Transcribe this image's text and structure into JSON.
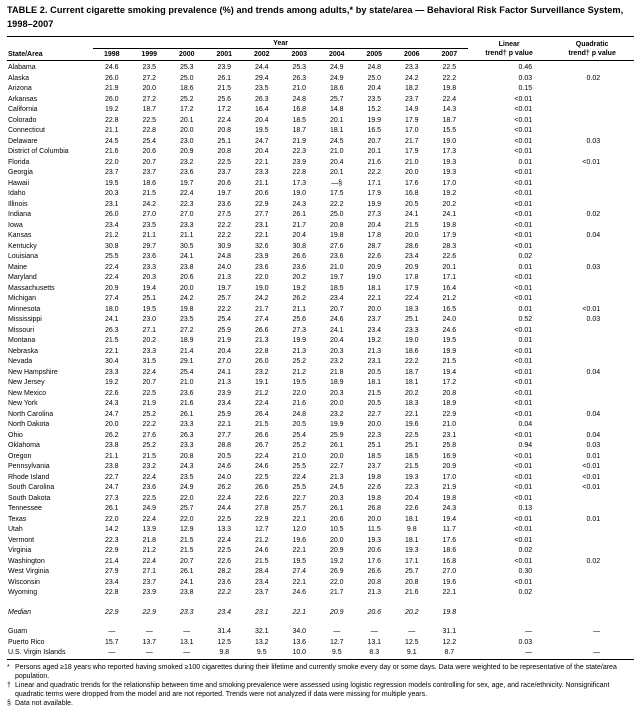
{
  "title": "TABLE 2. Current cigarette smoking prevalence (%) and trends among adults,* by state/area — Behavioral Risk Factor Surveillance System, 1998–2007",
  "table": {
    "year_group_label": "Year",
    "state_col_label": "State/Area",
    "years": [
      "1998",
      "1999",
      "2000",
      "2001",
      "2002",
      "2003",
      "2004",
      "2005",
      "2006",
      "2007"
    ],
    "linear_col": {
      "line1": "Linear",
      "line2": "trend† p value"
    },
    "quadratic_col": {
      "line1": "Quadratic",
      "line2": "trend† p value"
    },
    "rows": [
      {
        "area": "Alabama",
        "group": "states",
        "values": [
          "24.6",
          "23.5",
          "25.3",
          "23.9",
          "24.4",
          "25.3",
          "24.9",
          "24.8",
          "23.3",
          "22.5"
        ],
        "linear": "0.46",
        "quadratic": ""
      },
      {
        "area": "Alaska",
        "group": "states",
        "values": [
          "26.0",
          "27.2",
          "25.0",
          "26.1",
          "29.4",
          "26.3",
          "24.9",
          "25.0",
          "24.2",
          "22.2"
        ],
        "linear": "0.03",
        "quadratic": "0.02"
      },
      {
        "area": "Arizona",
        "group": "states",
        "values": [
          "21.9",
          "20.0",
          "18.6",
          "21.5",
          "23.5",
          "21.0",
          "18.6",
          "20.4",
          "18.2",
          "19.8"
        ],
        "linear": "0.15",
        "quadratic": ""
      },
      {
        "area": "Arkansas",
        "group": "states",
        "values": [
          "26.0",
          "27.2",
          "25.2",
          "25.6",
          "26.3",
          "24.8",
          "25.7",
          "23.5",
          "23.7",
          "22.4"
        ],
        "linear": "<0.01",
        "quadratic": ""
      },
      {
        "area": "California",
        "group": "states",
        "values": [
          "19.2",
          "18.7",
          "17.2",
          "17.2",
          "16.4",
          "16.8",
          "14.8",
          "15.2",
          "14.9",
          "14.3"
        ],
        "linear": "<0.01",
        "quadratic": ""
      },
      {
        "area": "Colorado",
        "group": "states",
        "values": [
          "22.8",
          "22.5",
          "20.1",
          "22.4",
          "20.4",
          "18.5",
          "20.1",
          "19.9",
          "17.9",
          "18.7"
        ],
        "linear": "<0.01",
        "quadratic": ""
      },
      {
        "area": "Connecticut",
        "group": "states",
        "values": [
          "21.1",
          "22.8",
          "20.0",
          "20.8",
          "19.5",
          "18.7",
          "18.1",
          "16.5",
          "17.0",
          "15.5"
        ],
        "linear": "<0.01",
        "quadratic": ""
      },
      {
        "area": "Delaware",
        "group": "states",
        "values": [
          "24.5",
          "25.4",
          "23.0",
          "25.1",
          "24.7",
          "21.9",
          "24.5",
          "20.7",
          "21.7",
          "19.0"
        ],
        "linear": "<0.01",
        "quadratic": "0.03"
      },
      {
        "area": "District of Columbia",
        "group": "states",
        "values": [
          "21.6",
          "20.6",
          "20.9",
          "20.8",
          "20.4",
          "22.3",
          "21.0",
          "20.1",
          "17.9",
          "17.3"
        ],
        "linear": "<0.01",
        "quadratic": ""
      },
      {
        "area": "Florida",
        "group": "states",
        "values": [
          "22.0",
          "20.7",
          "23.2",
          "22.5",
          "22.1",
          "23.9",
          "20.4",
          "21.6",
          "21.0",
          "19.3"
        ],
        "linear": "0.01",
        "quadratic": "<0.01"
      },
      {
        "area": "Georgia",
        "group": "states",
        "values": [
          "23.7",
          "23.7",
          "23.6",
          "23.7",
          "23.3",
          "22.8",
          "20.1",
          "22.2",
          "20.0",
          "19.3"
        ],
        "linear": "<0.01",
        "quadratic": ""
      },
      {
        "area": "Hawaii",
        "group": "states",
        "values": [
          "19.5",
          "18.6",
          "19.7",
          "20.6",
          "21.1",
          "17.3",
          "—§",
          "17.1",
          "17.6",
          "17.0"
        ],
        "linear": "<0.01",
        "quadratic": ""
      },
      {
        "area": "Idaho",
        "group": "states",
        "values": [
          "20.3",
          "21.5",
          "22.4",
          "19.7",
          "20.6",
          "19.0",
          "17.5",
          "17.9",
          "16.8",
          "19.2"
        ],
        "linear": "<0.01",
        "quadratic": ""
      },
      {
        "area": "Illinois",
        "group": "states",
        "values": [
          "23.1",
          "24.2",
          "22.3",
          "23.6",
          "22.9",
          "24.3",
          "22.2",
          "19.9",
          "20.5",
          "20.2"
        ],
        "linear": "<0.01",
        "quadratic": ""
      },
      {
        "area": "Indiana",
        "group": "states",
        "values": [
          "26.0",
          "27.0",
          "27.0",
          "27.5",
          "27.7",
          "26.1",
          "25.0",
          "27.3",
          "24.1",
          "24.1"
        ],
        "linear": "<0.01",
        "quadratic": "0.02"
      },
      {
        "area": "Iowa",
        "group": "states",
        "values": [
          "23.4",
          "23.5",
          "23.3",
          "22.2",
          "23.1",
          "21.7",
          "20.8",
          "20.4",
          "21.5",
          "19.8"
        ],
        "linear": "<0.01",
        "quadratic": ""
      },
      {
        "area": "Kansas",
        "group": "states",
        "values": [
          "21.2",
          "21.1",
          "21.1",
          "22.2",
          "22.1",
          "20.4",
          "19.8",
          "17.8",
          "20.0",
          "17.9"
        ],
        "linear": "<0.01",
        "quadratic": "0.04"
      },
      {
        "area": "Kentucky",
        "group": "states",
        "values": [
          "30.8",
          "29.7",
          "30.5",
          "30.9",
          "32.6",
          "30.8",
          "27.6",
          "28.7",
          "28.6",
          "28.3"
        ],
        "linear": "<0.01",
        "quadratic": ""
      },
      {
        "area": "Louisiana",
        "group": "states",
        "values": [
          "25.5",
          "23.6",
          "24.1",
          "24.8",
          "23.9",
          "26.6",
          "23.6",
          "22.6",
          "23.4",
          "22.6"
        ],
        "linear": "0.02",
        "quadratic": ""
      },
      {
        "area": "Maine",
        "group": "states",
        "values": [
          "22.4",
          "23.3",
          "23.8",
          "24.0",
          "23.6",
          "23.6",
          "21.0",
          "20.9",
          "20.9",
          "20.1"
        ],
        "linear": "0.01",
        "quadratic": "0.03"
      },
      {
        "area": "Maryland",
        "group": "states",
        "values": [
          "22.4",
          "20.3",
          "20.6",
          "21.3",
          "22.0",
          "20.2",
          "19.7",
          "19.0",
          "17.8",
          "17.1"
        ],
        "linear": "<0.01",
        "quadratic": ""
      },
      {
        "area": "Massachusetts",
        "group": "states",
        "values": [
          "20.9",
          "19.4",
          "20.0",
          "19.7",
          "19.0",
          "19.2",
          "18.5",
          "18.1",
          "17.9",
          "16.4"
        ],
        "linear": "<0.01",
        "quadratic": ""
      },
      {
        "area": "Michigan",
        "group": "states",
        "values": [
          "27.4",
          "25.1",
          "24.2",
          "25.7",
          "24.2",
          "26.2",
          "23.4",
          "22.1",
          "22.4",
          "21.2"
        ],
        "linear": "<0.01",
        "quadratic": ""
      },
      {
        "area": "Minnesota",
        "group": "states",
        "values": [
          "18.0",
          "19.5",
          "19.8",
          "22.2",
          "21.7",
          "21.1",
          "20.7",
          "20.0",
          "18.3",
          "16.5"
        ],
        "linear": "0.01",
        "quadratic": "<0.01"
      },
      {
        "area": "Mississippi",
        "group": "states",
        "values": [
          "24.1",
          "23.0",
          "23.5",
          "25.4",
          "27.4",
          "25.6",
          "24.6",
          "23.7",
          "25.1",
          "24.0"
        ],
        "linear": "0.52",
        "quadratic": "0.03"
      },
      {
        "area": "Missouri",
        "group": "states",
        "values": [
          "26.3",
          "27.1",
          "27.2",
          "25.9",
          "26.6",
          "27.3",
          "24.1",
          "23.4",
          "23.3",
          "24.6"
        ],
        "linear": "<0.01",
        "quadratic": ""
      },
      {
        "area": "Montana",
        "group": "states",
        "values": [
          "21.5",
          "20.2",
          "18.9",
          "21.9",
          "21.3",
          "19.9",
          "20.4",
          "19.2",
          "19.0",
          "19.5"
        ],
        "linear": "0.01",
        "quadratic": ""
      },
      {
        "area": "Nebraska",
        "group": "states",
        "values": [
          "22.1",
          "23.3",
          "21.4",
          "20.4",
          "22.8",
          "21.3",
          "20.3",
          "21.3",
          "18.6",
          "19.9"
        ],
        "linear": "<0.01",
        "quadratic": ""
      },
      {
        "area": "Nevada",
        "group": "states",
        "values": [
          "30.4",
          "31.5",
          "29.1",
          "27.0",
          "26.0",
          "25.2",
          "23.2",
          "23.1",
          "22.2",
          "21.5"
        ],
        "linear": "<0.01",
        "quadratic": ""
      },
      {
        "area": "New Hampshire",
        "group": "states",
        "values": [
          "23.3",
          "22.4",
          "25.4",
          "24.1",
          "23.2",
          "21.2",
          "21.8",
          "20.5",
          "18.7",
          "19.4"
        ],
        "linear": "<0.01",
        "quadratic": "0.04"
      },
      {
        "area": "New Jersey",
        "group": "states",
        "values": [
          "19.2",
          "20.7",
          "21.0",
          "21.3",
          "19.1",
          "19.5",
          "18.9",
          "18.1",
          "18.1",
          "17.2"
        ],
        "linear": "<0.01",
        "quadratic": ""
      },
      {
        "area": "New Mexico",
        "group": "states",
        "values": [
          "22.6",
          "22.5",
          "23.6",
          "23.9",
          "21.2",
          "22.0",
          "20.3",
          "21.5",
          "20.2",
          "20.8"
        ],
        "linear": "<0.01",
        "quadratic": ""
      },
      {
        "area": "New York",
        "group": "states",
        "values": [
          "24.3",
          "21.9",
          "21.6",
          "23.4",
          "22.4",
          "21.6",
          "20.0",
          "20.5",
          "18.3",
          "18.9"
        ],
        "linear": "<0.01",
        "quadratic": ""
      },
      {
        "area": "North Carolina",
        "group": "states",
        "values": [
          "24.7",
          "25.2",
          "26.1",
          "25.9",
          "26.4",
          "24.8",
          "23.2",
          "22.7",
          "22.1",
          "22.9"
        ],
        "linear": "<0.01",
        "quadratic": "0.04"
      },
      {
        "area": "North Dakota",
        "group": "states",
        "values": [
          "20.0",
          "22.2",
          "23.3",
          "22.1",
          "21.5",
          "20.5",
          "19.9",
          "20.0",
          "19.6",
          "21.0"
        ],
        "linear": "0.04",
        "quadratic": ""
      },
      {
        "area": "Ohio",
        "group": "states",
        "values": [
          "26.2",
          "27.6",
          "26.3",
          "27.7",
          "26.6",
          "25.4",
          "25.9",
          "22.3",
          "22.5",
          "23.1"
        ],
        "linear": "<0.01",
        "quadratic": "0.04"
      },
      {
        "area": "Oklahoma",
        "group": "states",
        "values": [
          "23.8",
          "25.2",
          "23.3",
          "28.8",
          "26.7",
          "25.2",
          "26.1",
          "25.1",
          "25.1",
          "25.8"
        ],
        "linear": "0.94",
        "quadratic": "0.03"
      },
      {
        "area": "Oregon",
        "group": "states",
        "values": [
          "21.1",
          "21.5",
          "20.8",
          "20.5",
          "22.4",
          "21.0",
          "20.0",
          "18.5",
          "18.5",
          "16.9"
        ],
        "linear": "<0.01",
        "quadratic": "0.01"
      },
      {
        "area": "Pennsylvania",
        "group": "states",
        "values": [
          "23.8",
          "23.2",
          "24.3",
          "24.6",
          "24.6",
          "25.5",
          "22.7",
          "23.7",
          "21.5",
          "20.9"
        ],
        "linear": "<0.01",
        "quadratic": "<0.01"
      },
      {
        "area": "Rhode Island",
        "group": "states",
        "values": [
          "22.7",
          "22.4",
          "23.5",
          "24.0",
          "22.5",
          "22.4",
          "21.3",
          "19.8",
          "19.3",
          "17.0"
        ],
        "linear": "<0.01",
        "quadratic": "<0.01"
      },
      {
        "area": "South Carolina",
        "group": "states",
        "values": [
          "24.7",
          "23.6",
          "24.9",
          "26.2",
          "26.6",
          "25.5",
          "24.5",
          "22.6",
          "22.3",
          "21.9"
        ],
        "linear": "<0.01",
        "quadratic": "<0.01"
      },
      {
        "area": "South Dakota",
        "group": "states",
        "values": [
          "27.3",
          "22.5",
          "22.0",
          "22.4",
          "22.6",
          "22.7",
          "20.3",
          "19.8",
          "20.4",
          "19.8"
        ],
        "linear": "<0.01",
        "quadratic": ""
      },
      {
        "area": "Tennessee",
        "group": "states",
        "values": [
          "26.1",
          "24.9",
          "25.7",
          "24.4",
          "27.8",
          "25.7",
          "26.1",
          "26.8",
          "22.6",
          "24.3"
        ],
        "linear": "0.13",
        "quadratic": ""
      },
      {
        "area": "Texas",
        "group": "states",
        "values": [
          "22.0",
          "22.4",
          "22.0",
          "22.5",
          "22.9",
          "22.1",
          "20.6",
          "20.0",
          "18.1",
          "19.4"
        ],
        "linear": "<0.01",
        "quadratic": "0.01"
      },
      {
        "area": "Utah",
        "group": "states",
        "values": [
          "14.2",
          "13.9",
          "12.9",
          "13.3",
          "12.7",
          "12.0",
          "10.5",
          "11.5",
          "9.8",
          "11.7"
        ],
        "linear": "<0.01",
        "quadratic": ""
      },
      {
        "area": "Vermont",
        "group": "states",
        "values": [
          "22.3",
          "21.8",
          "21.5",
          "22.4",
          "21.2",
          "19.6",
          "20.0",
          "19.3",
          "18.1",
          "17.6"
        ],
        "linear": "<0.01",
        "quadratic": ""
      },
      {
        "area": "Virginia",
        "group": "states",
        "values": [
          "22.9",
          "21.2",
          "21.5",
          "22.5",
          "24.6",
          "22.1",
          "20.9",
          "20.6",
          "19.3",
          "18.6"
        ],
        "linear": "0.02",
        "quadratic": ""
      },
      {
        "area": "Washington",
        "group": "states",
        "values": [
          "21.4",
          "22.4",
          "20.7",
          "22.6",
          "21.5",
          "19.5",
          "19.2",
          "17.6",
          "17.1",
          "16.8"
        ],
        "linear": "<0.01",
        "quadratic": "0.02"
      },
      {
        "area": "West Virginia",
        "group": "states",
        "values": [
          "27.9",
          "27.1",
          "26.1",
          "28.2",
          "28.4",
          "27.4",
          "26.9",
          "26.6",
          "25.7",
          "27.0"
        ],
        "linear": "0.30",
        "quadratic": ""
      },
      {
        "area": "Wisconsin",
        "group": "states",
        "values": [
          "23.4",
          "23.7",
          "24.1",
          "23.6",
          "23.4",
          "22.1",
          "22.0",
          "20.8",
          "20.8",
          "19.6"
        ],
        "linear": "<0.01",
        "quadratic": ""
      },
      {
        "area": "Wyoming",
        "group": "states",
        "values": [
          "22.8",
          "23.9",
          "23.8",
          "22.2",
          "23.7",
          "24.6",
          "21.7",
          "21.3",
          "21.6",
          "22.1"
        ],
        "linear": "0.02",
        "quadratic": ""
      },
      {
        "area": "Median",
        "group": "summary",
        "italic": true,
        "values": [
          "22.9",
          "22.9",
          "23.3",
          "23.4",
          "23.1",
          "22.1",
          "20.9",
          "20.6",
          "20.2",
          "19.8"
        ],
        "linear": "",
        "quadratic": ""
      },
      {
        "area": "Guam",
        "group": "territories",
        "values": [
          "—",
          "—",
          "—",
          "31.4",
          "32.1",
          "34.0",
          "—",
          "—",
          "—",
          "31.1"
        ],
        "linear": "—",
        "quadratic": "—"
      },
      {
        "area": "Puerto Rico",
        "group": "territories",
        "values": [
          "15.7",
          "13.7",
          "13.1",
          "12.5",
          "13.2",
          "13.6",
          "12.7",
          "13.1",
          "12.5",
          "12.2"
        ],
        "linear": "0.03",
        "quadratic": ""
      },
      {
        "area": "U.S. Virgin Islands",
        "group": "territories",
        "values": [
          "—",
          "—",
          "—",
          "9.8",
          "9.5",
          "10.0",
          "9.5",
          "8.3",
          "9.1",
          "8.7"
        ],
        "linear": "—",
        "quadratic": "—"
      }
    ]
  },
  "footnotes": [
    {
      "marker": "*",
      "text": "Persons aged ≥18 years who reported having smoked ≥100 cigarettes during their lifetime and currently smoke every day or some days. Data were weighted to be representative of the state/area population."
    },
    {
      "marker": "†",
      "text": "Linear and quadratic trends for the relationship between time and smoking prevalence were assessed using logistic regression models controlling for sex, age, and race/ethnicity. Nonsignificant quadratic terms were dropped from the model and are not reported. Trends were not analyzed if data were missing for multiple years."
    },
    {
      "marker": "§",
      "text": "Data not available."
    }
  ]
}
